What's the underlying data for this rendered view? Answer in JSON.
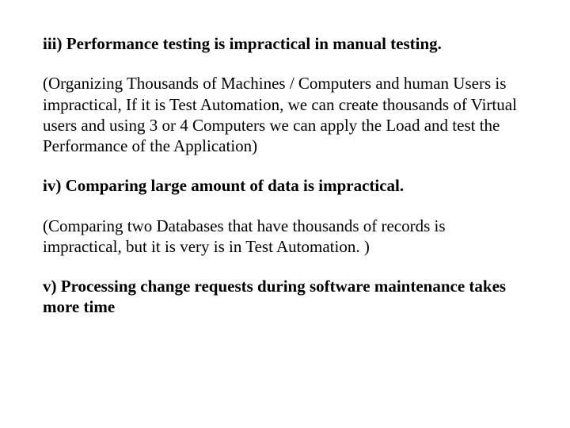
{
  "doc": {
    "font_family": "Times New Roman",
    "heading_fontsize_pt": 16,
    "body_fontsize_pt": 16,
    "text_color": "#000000",
    "background_color": "#ffffff",
    "sections": [
      {
        "type": "heading",
        "text": "iii) Performance testing is impractical in manual testing."
      },
      {
        "type": "para",
        "text": "(Organizing Thousands of Machines / Computers and human Users is impractical, If it is Test Automation, we can create thousands of Virtual users and using 3 or 4 Computers we can apply the Load and test the Performance of the Application)"
      },
      {
        "type": "heading",
        "text": "iv) Comparing large amount of data is impractical."
      },
      {
        "type": "para",
        "text": "(Comparing two Databases that have thousands of records is impractical, but it is very is in Test Automation. )"
      },
      {
        "type": "heading",
        "text": "v) Processing change requests during software maintenance takes more time"
      }
    ]
  }
}
